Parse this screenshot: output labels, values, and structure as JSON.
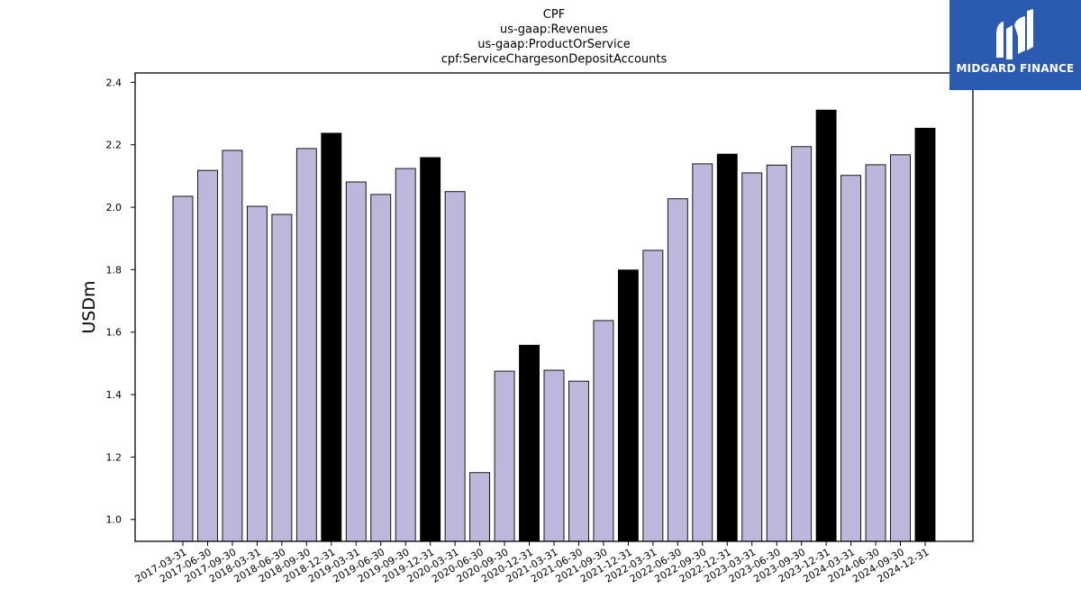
{
  "chart_data": {
    "type": "bar",
    "title_lines": [
      "CPF",
      "us-gaap:Revenues",
      "us-gaap:ProductOrService",
      "cpf:ServiceChargesonDepositAccounts"
    ],
    "ylabel": "USDm",
    "xlabel": "",
    "ylim": [
      0.93,
      2.43
    ],
    "yticks": [
      "1.0",
      "1.2",
      "1.4",
      "1.6",
      "1.8",
      "2.0",
      "2.2",
      "2.4"
    ],
    "categories": [
      "2017-03-31",
      "2017-06-30",
      "2017-09-30",
      "2018-03-31",
      "2018-06-30",
      "2018-09-30",
      "2018-12-31",
      "2019-03-31",
      "2019-06-30",
      "2019-09-30",
      "2019-12-31",
      "2020-03-31",
      "2020-06-30",
      "2020-09-30",
      "2020-12-31",
      "2021-03-31",
      "2021-06-30",
      "2021-09-30",
      "2021-12-31",
      "2022-03-31",
      "2022-06-30",
      "2022-09-30",
      "2022-12-31",
      "2023-03-31",
      "2023-06-30",
      "2023-09-30",
      "2023-12-31",
      "2024-03-31",
      "2024-06-30",
      "2024-09-30",
      "2024-12-31"
    ],
    "values": [
      2.035,
      2.118,
      2.182,
      2.003,
      1.977,
      2.188,
      2.237,
      2.081,
      2.041,
      2.124,
      2.159,
      2.05,
      1.15,
      1.475,
      1.558,
      1.478,
      1.443,
      1.637,
      1.799,
      1.862,
      2.027,
      2.139,
      2.17,
      2.11,
      2.135,
      2.194,
      2.311,
      2.102,
      2.136,
      2.168,
      2.253
    ],
    "highlighted": [
      false,
      false,
      false,
      false,
      false,
      false,
      true,
      false,
      false,
      false,
      true,
      false,
      false,
      false,
      true,
      false,
      false,
      false,
      true,
      false,
      false,
      false,
      true,
      false,
      false,
      false,
      true,
      false,
      false,
      false,
      true
    ],
    "colors": {
      "bar": "#bcb8db",
      "highlight": "#000000",
      "edge": "#000000"
    },
    "grid": false
  },
  "logo": {
    "text": "MIDGARD FINANCE",
    "background": "#2a5bb0"
  }
}
